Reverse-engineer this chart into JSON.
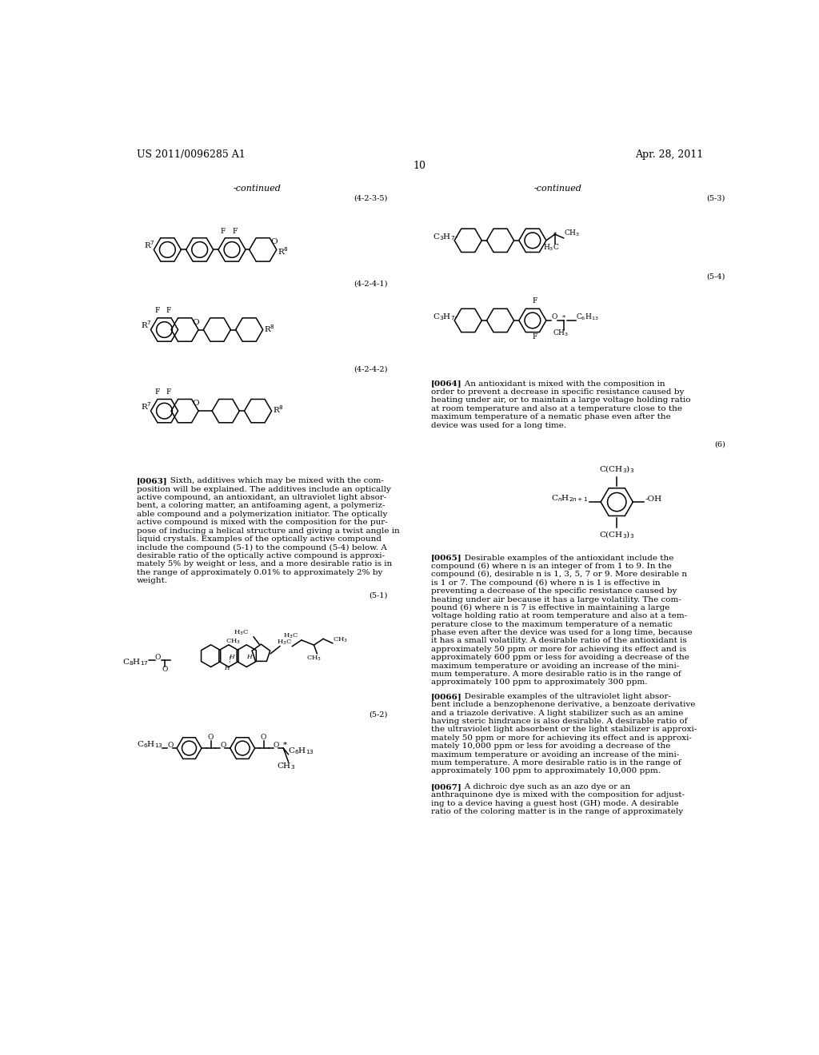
{
  "page_number": "10",
  "header_left": "US 2011/0096285 A1",
  "header_right": "Apr. 28, 2011",
  "background_color": "#ffffff",
  "text_color": "#000000",
  "font_size_header": 9,
  "font_size_body": 7.5,
  "font_size_label": 7.5,
  "font_size_struct_label": 7.5
}
